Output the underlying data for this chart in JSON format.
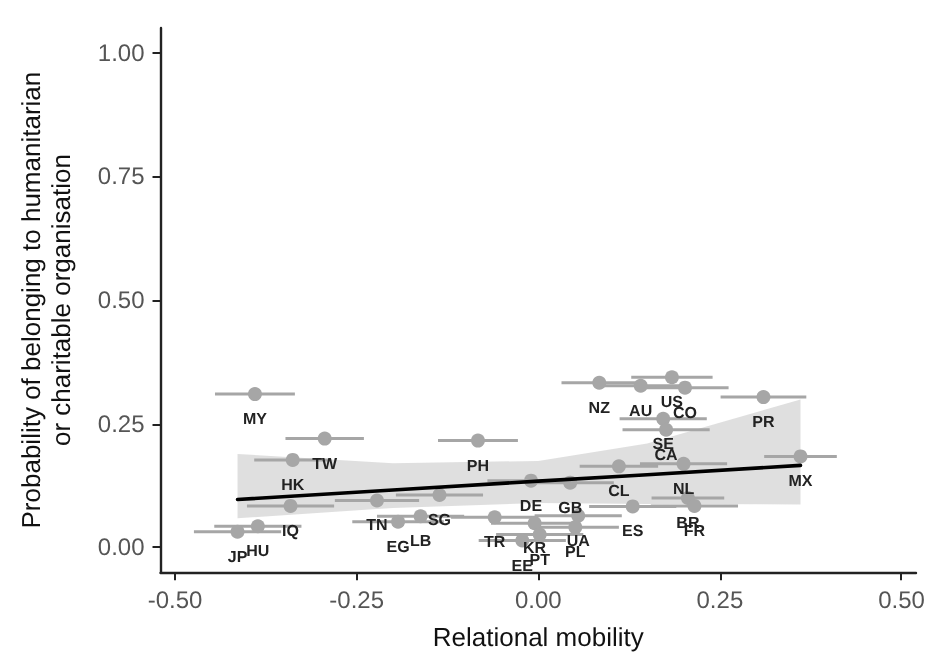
{
  "chart_data": {
    "type": "scatter",
    "xlabel": "Relational mobility",
    "ylabel": "Probability of belonging to humanitarian\nor charitable organisation",
    "xlim": [
      -0.52,
      0.52
    ],
    "xticks": [
      {
        "value": -0.5,
        "label": "-0.50"
      },
      {
        "value": -0.25,
        "label": "-0.25"
      },
      {
        "value": 0,
        "label": "0.00"
      },
      {
        "value": 0.25,
        "label": "0.25"
      },
      {
        "value": 0.5,
        "label": "0.50"
      }
    ],
    "ylim": [
      -0.05,
      1.05
    ],
    "yticks": [
      {
        "value": 0,
        "label": "0.00"
      },
      {
        "value": 0.25,
        "label": "0.25"
      },
      {
        "value": 0.5,
        "label": "0.50"
      },
      {
        "value": 0.75,
        "label": "0.75"
      },
      {
        "value": 1,
        "label": "1.00"
      }
    ],
    "grid": false,
    "marker": "circle",
    "series": [
      {
        "color": "#a6a6a6",
        "x": [
          -0.39,
          -0.294,
          -0.338,
          -0.083,
          -0.341,
          -0.386,
          -0.414,
          -0.222,
          -0.136,
          -0.193,
          -0.162,
          -0.06,
          -0.005,
          -0.022,
          -0.01,
          0.084,
          0.184,
          0.141,
          0.172,
          0.202,
          0.31,
          0.361,
          0.111,
          0.176,
          0.2,
          0.044,
          0.206,
          0.215,
          0.13,
          0.055,
          0.051,
          0.002
        ],
        "values": [
          0.31,
          0.22,
          0.177,
          0.216,
          0.084,
          0.043,
          0.032,
          0.095,
          0.106,
          0.052,
          0.063,
          0.061,
          0.049,
          0.014,
          0.135,
          0.333,
          0.344,
          0.327,
          0.26,
          0.323,
          0.304,
          0.184,
          0.164,
          0.238,
          0.169,
          0.131,
          0.1,
          0.084,
          0.083,
          0.064,
          0.041,
          0.026
        ],
        "xerrors": [
          0.055,
          0.054,
          0.053,
          0.055,
          0.06,
          0.06,
          0.06,
          0.058,
          0.06,
          0.063,
          0.06,
          0.06,
          0.06,
          0.06,
          0.06,
          0.052,
          0.056,
          0.06,
          0.06,
          0.06,
          0.059,
          0.05,
          0.054,
          0.06,
          0.06,
          0.06,
          0.05,
          0.06,
          0.06,
          0.06,
          0.06,
          0.06
        ],
        "value_labels": [
          "MY",
          "TW",
          "HK",
          "PH",
          "IQ",
          "HU",
          "JP",
          "TN",
          "SG",
          "EG",
          "LB",
          "TR",
          "KR",
          "EE",
          "DE",
          "NZ",
          "US",
          "AU",
          "SE",
          "CO",
          "PR",
          "MX",
          "CL",
          "CA",
          "NL",
          "GB",
          "BR",
          "FR",
          "ES",
          "UA",
          "PL",
          "PT"
        ]
      },
      {
        "type": "line",
        "color": "#000000",
        "marker": "none",
        "x": [
          -0.414,
          -0.2,
          0,
          0.15,
          0.361
        ],
        "values": [
          0.097,
          0.116,
          0.134,
          0.147,
          0.166
        ],
        "lower": [
          0.059,
          0.08,
          0.09,
          0.088,
          0.087
        ],
        "upper": [
          0.189,
          0.17,
          0.175,
          0.21,
          0.299
        ]
      }
    ]
  }
}
